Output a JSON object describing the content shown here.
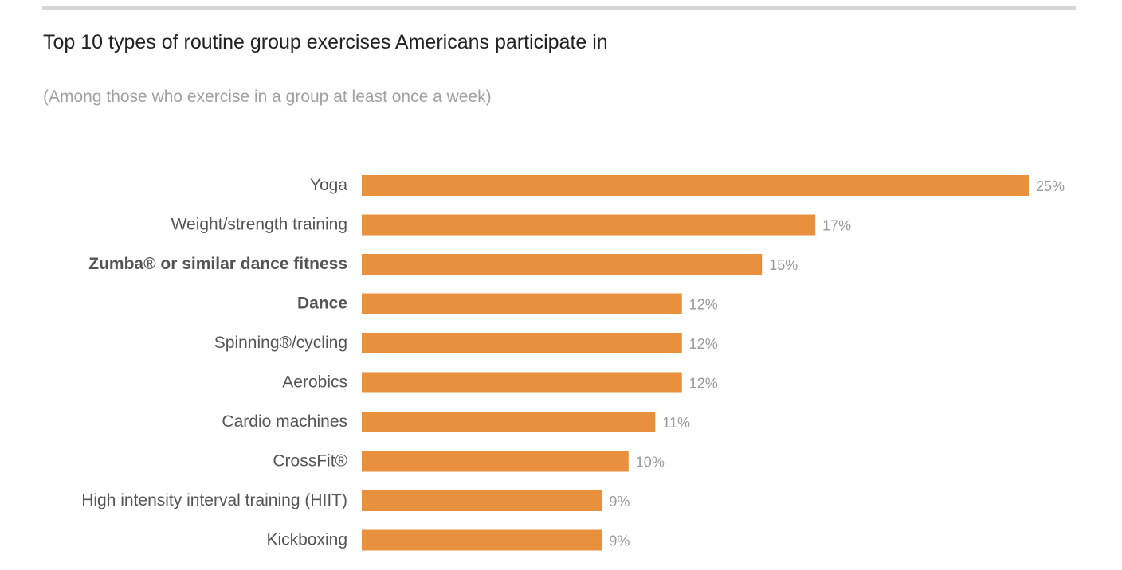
{
  "chart_data": {
    "type": "bar",
    "orientation": "horizontal",
    "title": "Top 10 types of routine group exercises Americans participate in",
    "subtitle": "(Among those who exercise in a group at least once a week)",
    "categories": [
      "Yoga",
      "Weight/strength training",
      "Zumba® or similar dance fitness",
      "Dance",
      "Spinning®/cycling",
      "Aerobics",
      "Cardio machines",
      "CrossFit®",
      "High intensity interval training (HIIT)",
      "Kickboxing"
    ],
    "bold_categories": [
      "Zumba® or similar dance fitness",
      "Dance"
    ],
    "values": [
      25,
      17,
      15,
      12,
      12,
      12,
      11,
      10,
      9,
      9
    ],
    "value_labels": [
      "25%",
      "17%",
      "15%",
      "12%",
      "12%",
      "12%",
      "11%",
      "10%",
      "9%",
      "9%"
    ],
    "unit": "%",
    "xlim": [
      0,
      25
    ],
    "grid": false,
    "bar_color": "#E8903E"
  }
}
